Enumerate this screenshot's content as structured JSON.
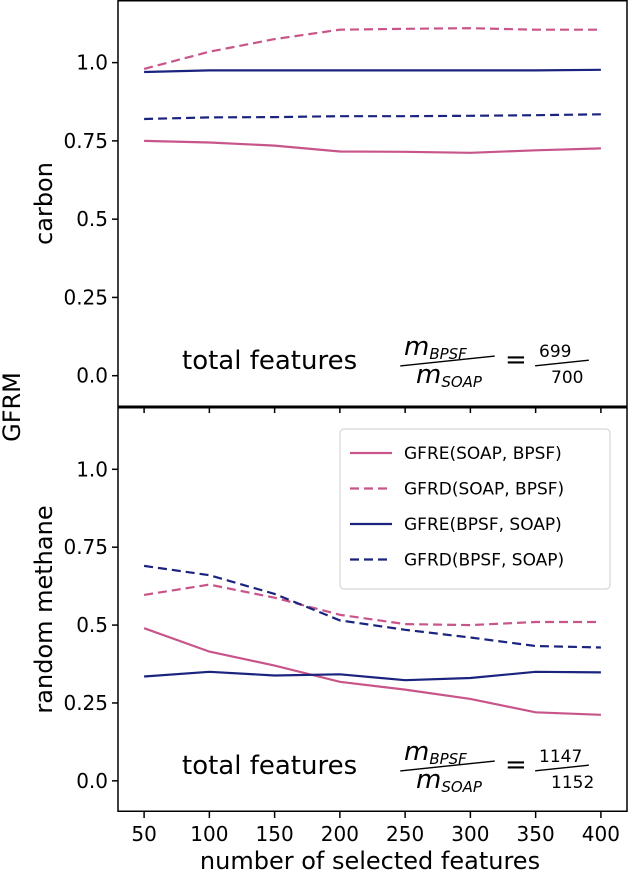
{
  "figure": {
    "shared_ylabel": "GFRM",
    "shared_xlabel": "number of selected features"
  },
  "legend": {
    "entries": [
      {
        "label": "GFRE(SOAP, BPSF)",
        "color": "#c8558a",
        "dash": false
      },
      {
        "label": "GFRD(SOAP, BPSF)",
        "color": "#c8558a",
        "dash": true
      },
      {
        "label": "GFRE(BPSF, SOAP)",
        "color": "#1a237e",
        "dash": false
      },
      {
        "label": "GFRD(BPSF, SOAP)",
        "color": "#1a237e",
        "dash": true
      }
    ]
  },
  "chart_data": [
    {
      "type": "line",
      "ylabel": "carbon",
      "xlabel": "",
      "x": [
        50,
        100,
        150,
        200,
        250,
        300,
        350,
        400
      ],
      "xlim": [
        30,
        420
      ],
      "ylim": [
        -0.1,
        1.2
      ],
      "yticks": [
        "0.0",
        "0.25",
        "0.5",
        "0.75",
        "1.0"
      ],
      "ytick_values": [
        0,
        0.25,
        0.5,
        0.75,
        1.0
      ],
      "xticks": [
        "50",
        "100",
        "150",
        "200",
        "250",
        "300",
        "350",
        "400"
      ],
      "annotation": {
        "text": "total features",
        "num": "m",
        "num_sub": "BPSF",
        "den": "m",
        "den_sub": "SOAP",
        "eq": "=",
        "frac_num": "699",
        "frac_den": "700"
      },
      "series": [
        {
          "name": "GFRE(SOAP, BPSF)",
          "values": [
            0.75,
            0.745,
            0.735,
            0.716,
            0.715,
            0.712,
            0.72,
            0.726
          ]
        },
        {
          "name": "GFRD(SOAP, BPSF)",
          "values": [
            0.98,
            1.035,
            1.075,
            1.105,
            1.108,
            1.11,
            1.105,
            1.105
          ]
        },
        {
          "name": "GFRE(BPSF, SOAP)",
          "values": [
            0.97,
            0.975,
            0.975,
            0.975,
            0.975,
            0.975,
            0.975,
            0.977
          ]
        },
        {
          "name": "GFRD(BPSF, SOAP)",
          "values": [
            0.82,
            0.825,
            0.826,
            0.829,
            0.829,
            0.83,
            0.832,
            0.835
          ]
        }
      ]
    },
    {
      "type": "line",
      "ylabel": "random methane",
      "xlabel": "number of selected features",
      "x": [
        50,
        100,
        150,
        200,
        250,
        300,
        350,
        400
      ],
      "xlim": [
        30,
        420
      ],
      "ylim": [
        -0.1,
        1.2
      ],
      "yticks": [
        "0.0",
        "0.25",
        "0.5",
        "0.75",
        "1.0"
      ],
      "ytick_values": [
        0,
        0.25,
        0.5,
        0.75,
        1.0
      ],
      "xticks": [
        "50",
        "100",
        "150",
        "200",
        "250",
        "300",
        "350",
        "400"
      ],
      "legend_position": "top-right",
      "annotation": {
        "text": "total features",
        "num": "m",
        "num_sub": "BPSF",
        "den": "m",
        "den_sub": "SOAP",
        "eq": "=",
        "frac_num": "1147",
        "frac_den": "1152"
      },
      "series": [
        {
          "name": "GFRE(SOAP, BPSF)",
          "values": [
            0.49,
            0.415,
            0.37,
            0.318,
            0.293,
            0.263,
            0.22,
            0.212
          ]
        },
        {
          "name": "GFRD(SOAP, BPSF)",
          "values": [
            0.597,
            0.63,
            0.588,
            0.533,
            0.503,
            0.5,
            0.51,
            0.51
          ]
        },
        {
          "name": "GFRE(BPSF, SOAP)",
          "values": [
            0.335,
            0.35,
            0.338,
            0.342,
            0.323,
            0.33,
            0.35,
            0.348
          ]
        },
        {
          "name": "GFRD(BPSF, SOAP)",
          "values": [
            0.69,
            0.66,
            0.6,
            0.515,
            0.485,
            0.46,
            0.433,
            0.428
          ]
        }
      ]
    }
  ]
}
